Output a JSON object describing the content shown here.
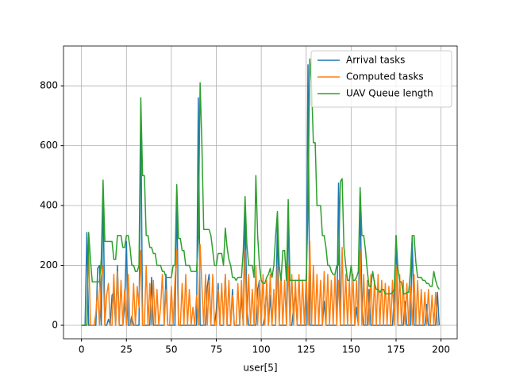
{
  "chart_data": {
    "type": "line",
    "xlabel": "user[5]",
    "grid": true,
    "legend": "upper right",
    "xlim": [
      -10,
      209
    ],
    "ylim": [
      -45,
      933
    ],
    "xticks": [
      0,
      25,
      50,
      75,
      100,
      125,
      150,
      175,
      200
    ],
    "yticks": [
      0,
      200,
      400,
      600,
      800
    ],
    "x": [
      0,
      1,
      2,
      3,
      4,
      5,
      6,
      7,
      8,
      9,
      10,
      11,
      12,
      13,
      14,
      15,
      16,
      17,
      18,
      19,
      20,
      21,
      22,
      23,
      24,
      25,
      26,
      27,
      28,
      29,
      30,
      31,
      32,
      33,
      34,
      35,
      36,
      37,
      38,
      39,
      40,
      41,
      42,
      43,
      44,
      45,
      46,
      47,
      48,
      49,
      50,
      51,
      52,
      53,
      54,
      55,
      56,
      57,
      58,
      59,
      60,
      61,
      62,
      63,
      64,
      65,
      66,
      67,
      68,
      69,
      70,
      71,
      72,
      73,
      74,
      75,
      76,
      77,
      78,
      79,
      80,
      81,
      82,
      83,
      84,
      85,
      86,
      87,
      88,
      89,
      90,
      91,
      92,
      93,
      94,
      95,
      96,
      97,
      98,
      99,
      100,
      101,
      102,
      103,
      104,
      105,
      106,
      107,
      108,
      109,
      110,
      111,
      112,
      113,
      114,
      115,
      116,
      117,
      118,
      119,
      120,
      121,
      122,
      123,
      124,
      125,
      126,
      127,
      128,
      129,
      130,
      131,
      132,
      133,
      134,
      135,
      136,
      137,
      138,
      139,
      140,
      141,
      142,
      143,
      144,
      145,
      146,
      147,
      148,
      149,
      150,
      151,
      152,
      153,
      154,
      155,
      156,
      157,
      158,
      159,
      160,
      161,
      162,
      163,
      164,
      165,
      166,
      167,
      168,
      169,
      170,
      171,
      172,
      173,
      174,
      175,
      176,
      177,
      178,
      179,
      180,
      181,
      182,
      183,
      184,
      185,
      186,
      187,
      188,
      189,
      190,
      191,
      192,
      193,
      194,
      195,
      196,
      197,
      198,
      199
    ],
    "series": [
      {
        "name": "Arrival tasks",
        "color": "#1f77b4",
        "values": [
          0,
          0,
          0,
          310,
          0,
          0,
          0,
          0,
          0,
          190,
          200,
          0,
          455,
          0,
          0,
          20,
          0,
          100,
          110,
          0,
          200,
          0,
          0,
          0,
          60,
          280,
          0,
          0,
          30,
          0,
          0,
          0,
          0,
          700,
          0,
          0,
          0,
          0,
          0,
          160,
          0,
          0,
          0,
          0,
          0,
          0,
          0,
          170,
          0,
          0,
          0,
          0,
          0,
          435,
          0,
          0,
          0,
          0,
          0,
          0,
          0,
          0,
          0,
          0,
          0,
          760,
          0,
          0,
          0,
          0,
          130,
          170,
          0,
          0,
          0,
          50,
          140,
          0,
          0,
          0,
          170,
          0,
          0,
          0,
          120,
          0,
          0,
          0,
          0,
          100,
          0,
          400,
          60,
          0,
          0,
          0,
          0,
          0,
          120,
          150,
          0,
          0,
          30,
          130,
          0,
          100,
          0,
          0,
          0,
          350,
          0,
          0,
          0,
          0,
          0,
          390,
          0,
          0,
          60,
          120,
          0,
          0,
          0,
          0,
          0,
          0,
          870,
          0,
          0,
          0,
          0,
          0,
          0,
          0,
          0,
          80,
          0,
          0,
          0,
          0,
          0,
          0,
          0,
          475,
          0,
          0,
          0,
          0,
          0,
          0,
          0,
          0,
          0,
          60,
          0,
          440,
          70,
          0,
          0,
          0,
          120,
          0,
          0,
          0,
          0,
          0,
          0,
          0,
          0,
          0,
          0,
          0,
          0,
          0,
          100,
          300,
          0,
          0,
          0,
          0,
          80,
          0,
          0,
          0,
          295,
          0,
          0,
          0,
          0,
          0,
          0,
          0,
          70,
          0,
          0,
          0,
          0,
          0,
          110,
          0
        ]
      },
      {
        "name": "Computed tasks",
        "color": "#ff7f0e",
        "values": [
          0,
          0,
          0,
          0,
          260,
          0,
          0,
          0,
          40,
          120,
          0,
          160,
          200,
          0,
          100,
          140,
          0,
          0,
          170,
          0,
          180,
          0,
          150,
          0,
          120,
          0,
          170,
          0,
          0,
          140,
          0,
          130,
          60,
          250,
          0,
          0,
          200,
          0,
          140,
          0,
          150,
          0,
          120,
          0,
          60,
          170,
          0,
          120,
          0,
          0,
          130,
          0,
          150,
          250,
          0,
          0,
          140,
          0,
          170,
          0,
          120,
          0,
          60,
          0,
          100,
          0,
          270,
          130,
          0,
          170,
          0,
          150,
          0,
          170,
          0,
          0,
          120,
          0,
          140,
          0,
          170,
          0,
          150,
          0,
          100,
          0,
          0,
          140,
          0,
          150,
          0,
          250,
          0,
          170,
          0,
          120,
          0,
          200,
          0,
          150,
          0,
          170,
          0,
          150,
          0,
          170,
          0,
          120,
          0,
          200,
          0,
          170,
          0,
          150,
          0,
          200,
          0,
          170,
          0,
          150,
          0,
          170,
          0,
          150,
          0,
          170,
          0,
          280,
          0,
          200,
          0,
          170,
          0,
          150,
          0,
          180,
          0,
          170,
          0,
          150,
          0,
          170,
          0,
          150,
          0,
          260,
          0,
          170,
          0,
          150,
          0,
          170,
          0,
          150,
          0,
          250,
          0,
          170,
          0,
          150,
          0,
          170,
          0,
          150,
          0,
          170,
          0,
          150,
          0,
          140,
          0,
          130,
          0,
          150,
          0,
          200,
          0,
          170,
          0,
          150,
          0,
          140,
          0,
          130,
          0,
          170,
          0,
          150,
          0,
          120,
          0,
          110,
          0,
          120,
          0,
          100,
          0,
          110,
          0,
          0
        ]
      },
      {
        "name": "UAV Queue length",
        "color": "#2ca02c",
        "values": [
          0,
          0,
          0,
          0,
          310,
          220,
          145,
          145,
          145,
          145,
          145,
          220,
          485,
          280,
          280,
          280,
          280,
          280,
          220,
          220,
          300,
          300,
          300,
          260,
          260,
          300,
          300,
          260,
          200,
          200,
          180,
          180,
          200,
          760,
          500,
          500,
          300,
          300,
          260,
          260,
          240,
          240,
          200,
          200,
          200,
          180,
          180,
          160,
          160,
          160,
          160,
          200,
          200,
          470,
          290,
          290,
          250,
          250,
          200,
          200,
          200,
          180,
          180,
          180,
          180,
          300,
          810,
          600,
          320,
          320,
          320,
          320,
          300,
          250,
          200,
          200,
          240,
          240,
          240,
          200,
          325,
          260,
          220,
          200,
          160,
          160,
          150,
          160,
          160,
          160,
          250,
          430,
          270,
          200,
          200,
          200,
          160,
          500,
          300,
          200,
          150,
          140,
          140,
          160,
          170,
          190,
          160,
          200,
          300,
          380,
          200,
          150,
          250,
          250,
          150,
          420,
          150,
          150,
          150,
          150,
          150,
          150,
          150,
          150,
          150,
          150,
          380,
          890,
          800,
          610,
          610,
          400,
          400,
          400,
          300,
          300,
          260,
          200,
          200,
          180,
          170,
          170,
          200,
          200,
          480,
          490,
          260,
          200,
          150,
          150,
          200,
          150,
          150,
          160,
          180,
          460,
          300,
          300,
          250,
          180,
          130,
          130,
          180,
          140,
          120,
          120,
          110,
          120,
          120,
          105,
          105,
          105,
          105,
          110,
          120,
          300,
          190,
          145,
          145,
          105,
          105,
          110,
          110,
          180,
          300,
          300,
          210,
          160,
          160,
          160,
          150,
          150,
          140,
          140,
          130,
          130,
          180,
          150,
          130,
          120
        ]
      }
    ]
  }
}
